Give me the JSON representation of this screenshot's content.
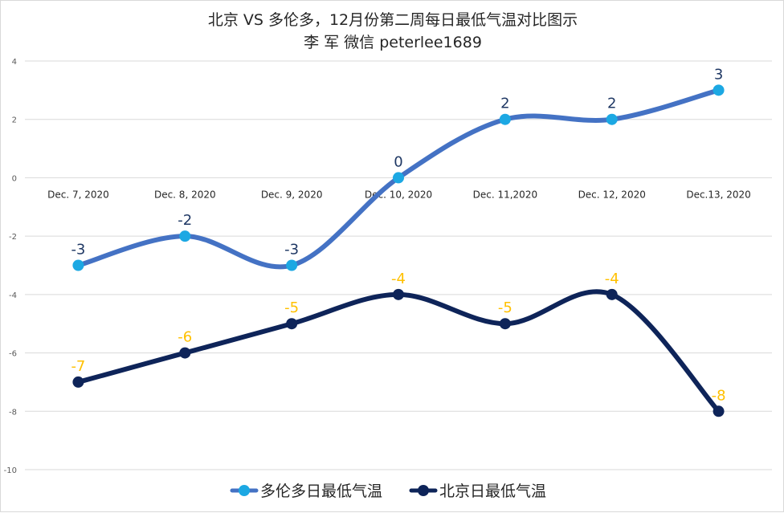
{
  "chart_data": {
    "type": "line",
    "title": "北京 VS 多伦多，12月份第二周每日最低气温对比图示",
    "subtitle": "李 军  微信 peterlee1689",
    "categories": [
      "Dec. 7, 2020",
      "Dec. 8, 2020",
      "Dec. 9, 2020",
      "Dec. 10, 2020",
      "Dec. 11,2020",
      "Dec. 12, 2020",
      "Dec.13, 2020"
    ],
    "y_ticks": [
      "4",
      "2",
      "0",
      "-2",
      "-4",
      "-6",
      "-8",
      "-10"
    ],
    "ylim": [
      -10,
      4
    ],
    "grid": true,
    "legend_position": "bottom",
    "series": [
      {
        "name": "多伦多日最低气温",
        "values": [
          -3,
          -2,
          -3,
          0,
          2,
          2,
          3
        ],
        "labels": [
          "-3",
          "-2",
          "-3",
          "0",
          "2",
          "2",
          "3"
        ],
        "line_color": "#4472C4",
        "marker_color": "#1CA8E3",
        "label_color": "#1F3864"
      },
      {
        "name": "北京日最低气温",
        "values": [
          -7,
          -6,
          -5,
          -4,
          -5,
          -4,
          -8
        ],
        "labels": [
          "-7",
          "-6",
          "-5",
          "-4",
          "-5",
          "-4",
          "-8"
        ],
        "line_color": "#0E2459",
        "marker_color": "#0E2459",
        "label_color": "#FFC000"
      }
    ]
  }
}
